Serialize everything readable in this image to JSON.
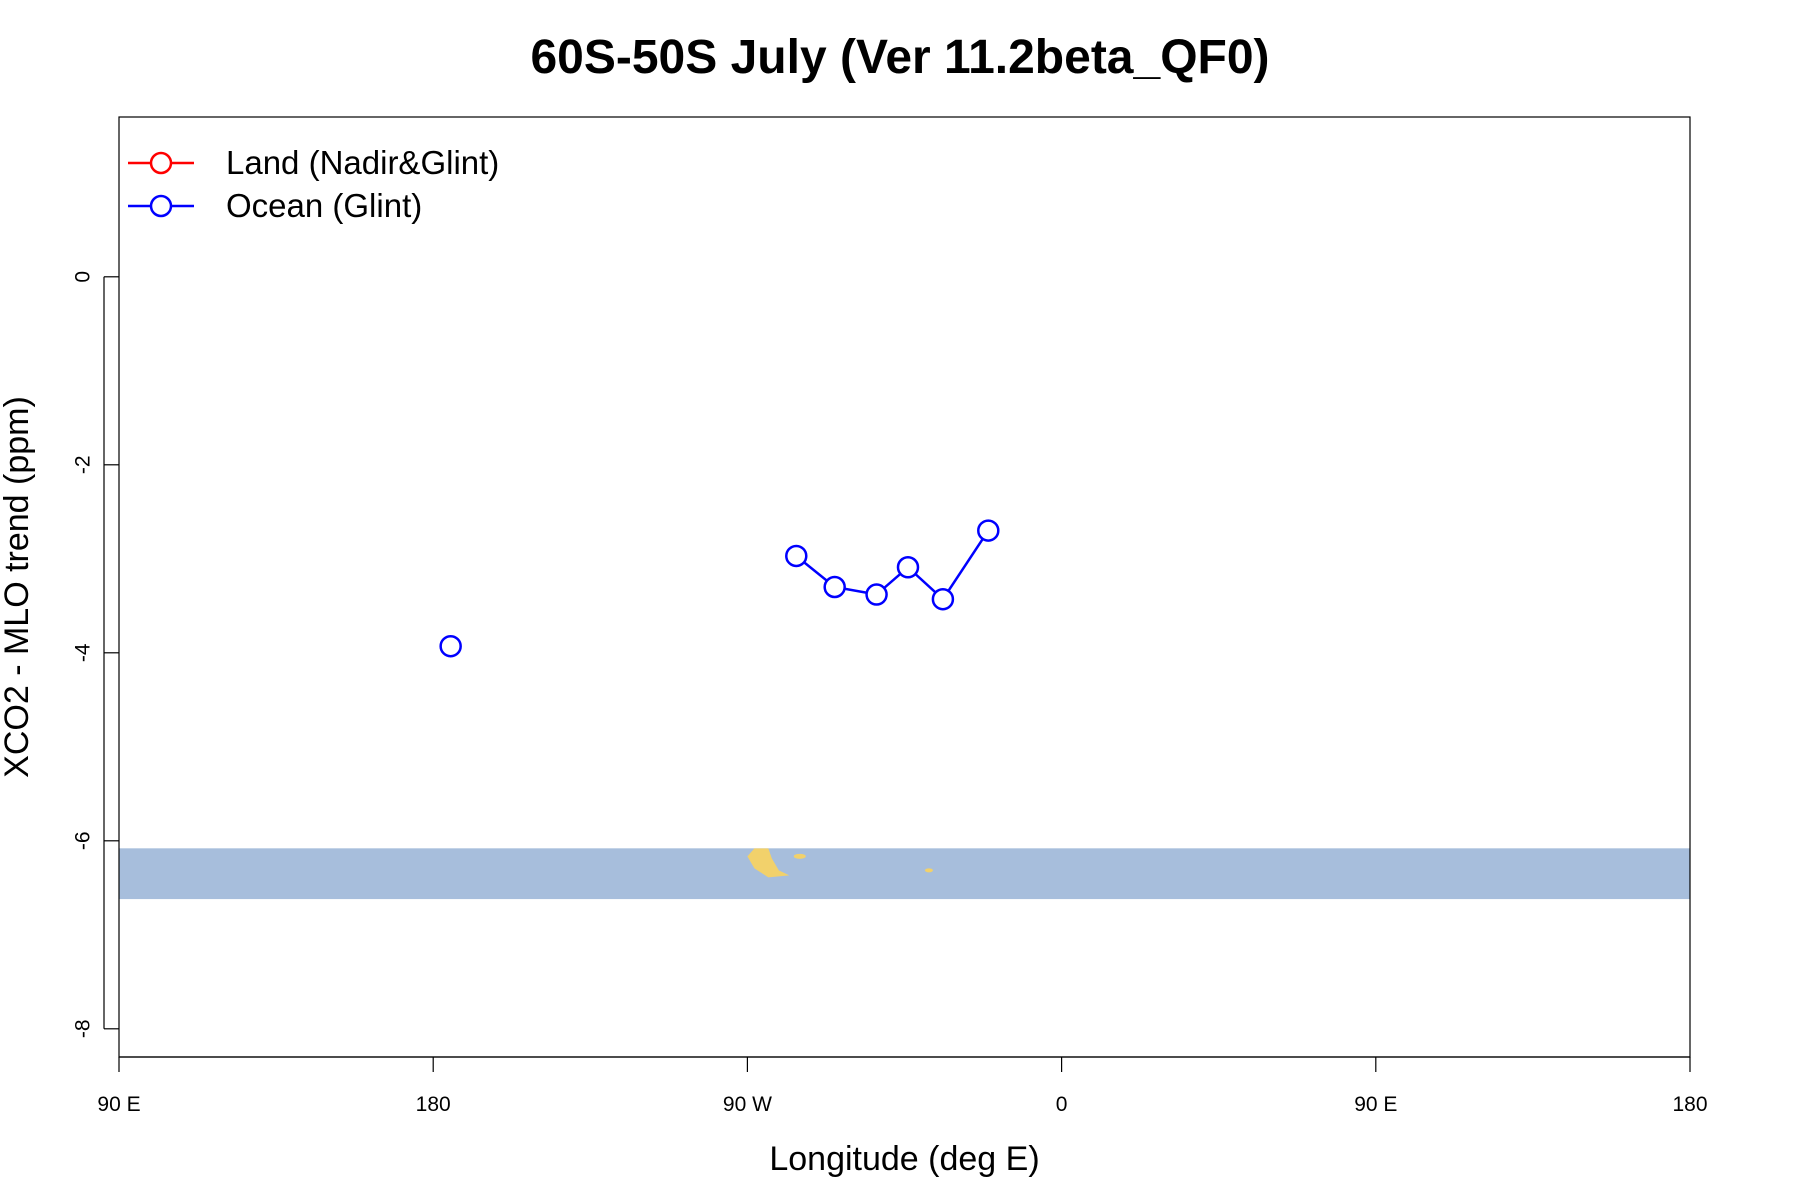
{
  "chart_data": {
    "type": "line",
    "title": "60S-50S July (Ver 11.2beta_QF0)",
    "xlabel": "Longitude (deg E)",
    "ylabel": "XCO2 - MLO trend (ppm)",
    "xlim": [
      90,
      540
    ],
    "ylim": [
      -8.3,
      1.7
    ],
    "x_ticks": [
      {
        "value": 90,
        "label": "90 E"
      },
      {
        "value": 180,
        "label": "180"
      },
      {
        "value": 270,
        "label": "90 W"
      },
      {
        "value": 360,
        "label": "0"
      },
      {
        "value": 450,
        "label": "90 E"
      },
      {
        "value": 540,
        "label": "180"
      }
    ],
    "y_ticks": [
      {
        "value": 0,
        "label": "0"
      },
      {
        "value": -2,
        "label": "-2"
      },
      {
        "value": -4,
        "label": "-4"
      },
      {
        "value": -6,
        "label": "-6"
      },
      {
        "value": -8,
        "label": "-8"
      }
    ],
    "grid": false,
    "legend_position": "top-left",
    "series": [
      {
        "name": "Land (Nadir&Glint)",
        "color": "#ff0000",
        "marker": "open-circle",
        "points": []
      },
      {
        "name": "Ocean (Glint)",
        "color": "#0000ff",
        "marker": "open-circle",
        "segments": [
          [
            {
              "x": 185,
              "y": -3.93
            }
          ],
          [
            {
              "x": 284,
              "y": -2.97
            },
            {
              "x": 295,
              "y": -3.3
            },
            {
              "x": 307,
              "y": -3.38
            },
            {
              "x": 316,
              "y": -3.09
            },
            {
              "x": 326,
              "y": -3.43
            },
            {
              "x": 339,
              "y": -2.7
            }
          ]
        ]
      }
    ],
    "map_strip": {
      "y_range": [
        -6.62,
        -6.08
      ],
      "ocean_color": "#a7bedc",
      "land_color": "#f2d16b"
    }
  }
}
